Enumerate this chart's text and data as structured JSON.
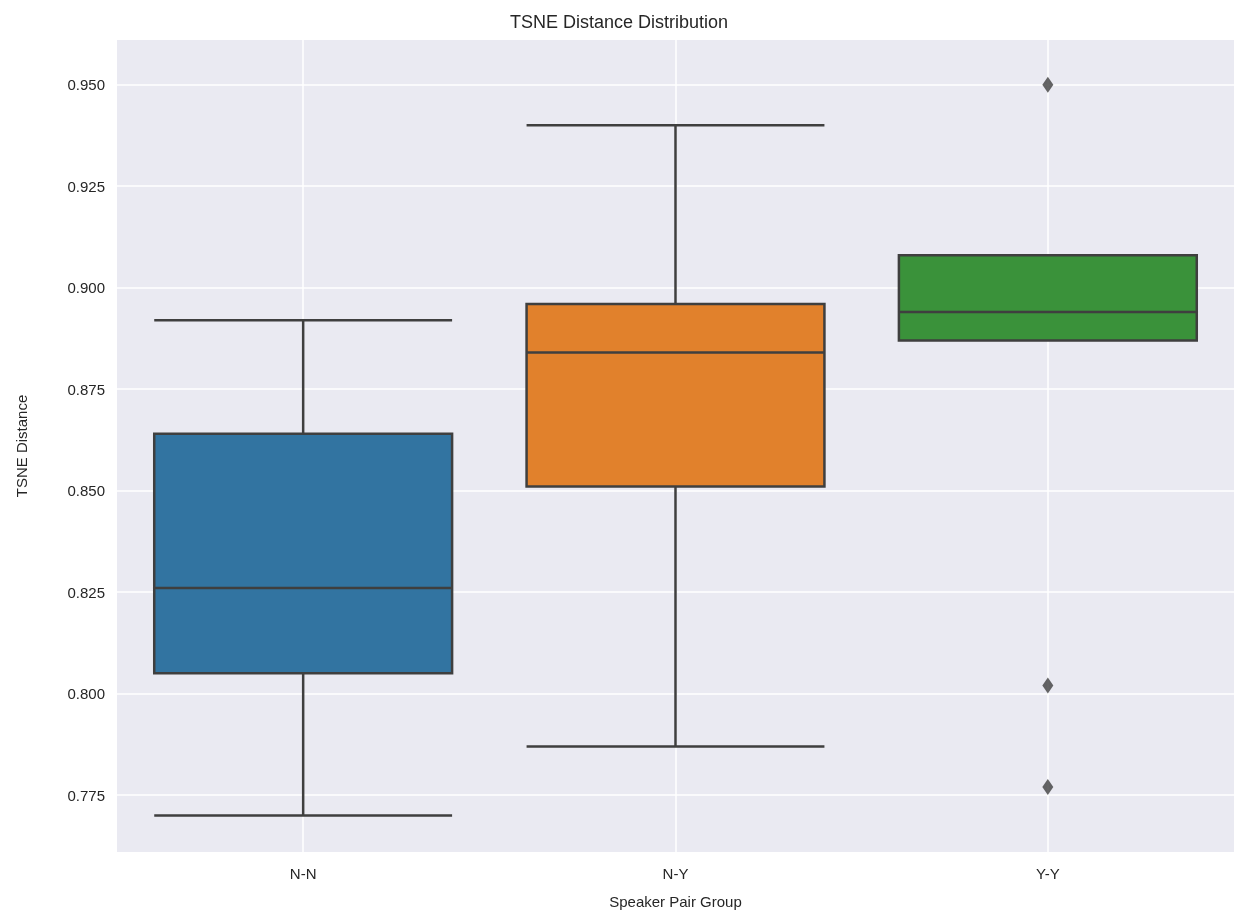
{
  "chart_data": {
    "type": "box",
    "title": "TSNE Distance Distribution",
    "xlabel": "Speaker Pair Group",
    "ylabel": "TSNE Distance",
    "categories": [
      "N-N",
      "N-Y",
      "Y-Y"
    ],
    "boxes": [
      {
        "low": 0.77,
        "q1": 0.805,
        "median": 0.826,
        "q3": 0.864,
        "high": 0.892
      },
      {
        "low": 0.787,
        "q1": 0.851,
        "median": 0.884,
        "q3": 0.896,
        "high": 0.94
      },
      {
        "low": 0.887,
        "q1": 0.887,
        "median": 0.894,
        "q3": 0.908,
        "high": 0.908,
        "outliers": [
          0.95,
          0.802,
          0.777
        ]
      }
    ],
    "colors": [
      "#3274a1",
      "#e1812c",
      "#3a923a"
    ],
    "ylim": [
      0.761,
      0.961
    ],
    "yticks": [
      {
        "value": 0.775,
        "label": "0.775"
      },
      {
        "value": 0.8,
        "label": "0.800"
      },
      {
        "value": 0.825,
        "label": "0.825"
      },
      {
        "value": 0.85,
        "label": "0.850"
      },
      {
        "value": 0.875,
        "label": "0.875"
      },
      {
        "value": 0.9,
        "label": "0.900"
      },
      {
        "value": 0.925,
        "label": "0.925"
      },
      {
        "value": 0.95,
        "label": "0.950"
      }
    ],
    "grid": true,
    "marker": "diamond"
  }
}
